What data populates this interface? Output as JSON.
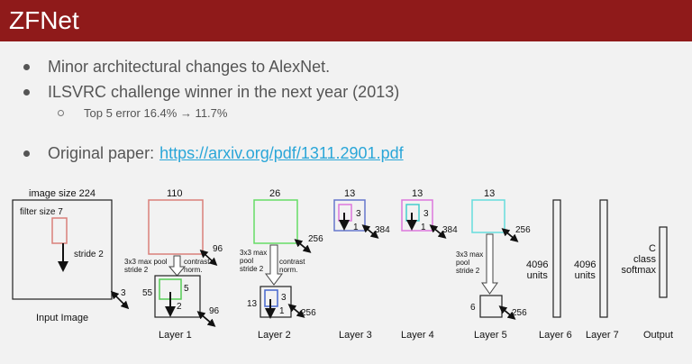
{
  "header": {
    "title": "ZFNet"
  },
  "bullets": [
    {
      "text": "Minor architectural changes to AlexNet."
    },
    {
      "text": "ILSVRC challenge winner in the next year (2013)"
    },
    {
      "text": "Top 5 error 16.4% → 11.7%"
    },
    {
      "text": "Original paper:",
      "link": "https://arxiv.org/pdf/1311.2901.pdf"
    }
  ],
  "diagram": {
    "input": {
      "image_size": "image size 224",
      "filter_size": "filter size 7",
      "stride": "stride 2",
      "depth": "3",
      "caption": "Input Image"
    },
    "layer1": {
      "top": "110",
      "depth1": "96",
      "pool": "3x3 max pool\nstride 2",
      "norm": "contrast\nnorm.",
      "size2": "55",
      "k": "5",
      "s": "2",
      "depth2": "96",
      "caption": "Layer 1"
    },
    "layer2": {
      "top": "26",
      "depth1": "256",
      "pool": "3x3 max\npool\nstride 2",
      "norm": "contrast\nnorm.",
      "size2": "13",
      "k": "3",
      "s": "1",
      "depth2": "256",
      "caption": "Layer 2"
    },
    "layer3": {
      "top": "13",
      "k": "3",
      "s": "1",
      "depth": "384",
      "caption": "Layer 3"
    },
    "layer4": {
      "top": "13",
      "k": "3",
      "s": "1",
      "depth": "384",
      "caption": "Layer 4"
    },
    "layer5": {
      "top": "13",
      "depth1": "256",
      "pool": "3x3 max\npool\nstride 2",
      "size2": "6",
      "depth2": "256",
      "caption": "Layer 5"
    },
    "layer6": {
      "units": "4096\nunits",
      "caption": "Layer 6"
    },
    "layer7": {
      "units": "4096\nunits",
      "caption": "Layer 7"
    },
    "output": {
      "text": "C\nclass\nsoftmax",
      "caption": "Output"
    }
  },
  "colors": {
    "header": "#8f1a1a",
    "link": "#2aa6d8",
    "filter_input": "#d9807a",
    "layer1": "#d9807a",
    "layer1_inner": "#55cc55",
    "layer2": "#66dd66",
    "layer2_inner": "#4466cc",
    "layer3": "#6677cc",
    "layer3_inner": "#dd77dd",
    "layer4": "#dd77dd",
    "layer4_inner": "#44cccc",
    "layer5": "#66dddd"
  }
}
